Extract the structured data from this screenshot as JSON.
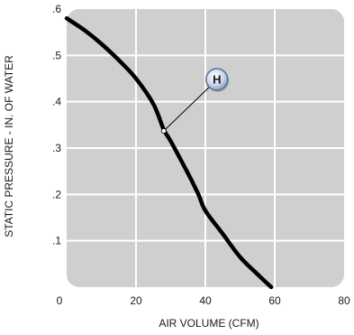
{
  "chart_data": {
    "type": "line",
    "xlabel": "AIR VOLUME (CFM)",
    "ylabel": "STATIC PRESSURE - IN. OF WATER",
    "xlim": [
      0,
      80
    ],
    "ylim": [
      0,
      0.6
    ],
    "x_ticks": [
      0,
      20,
      40,
      60,
      80
    ],
    "x_tick_labels": [
      "0",
      "20",
      "40",
      "60",
      "80"
    ],
    "y_ticks": [
      0.1,
      0.2,
      0.3,
      0.4,
      0.5,
      0.6
    ],
    "y_tick_labels": [
      ".1",
      ".2",
      ".3",
      ".4",
      ".5",
      ".6"
    ],
    "grid": true,
    "series": [
      {
        "x": [
          0,
          5,
          10,
          15,
          20,
          25,
          28,
          30,
          35,
          38,
          40,
          45,
          50,
          55,
          59
        ],
        "y": [
          0.58,
          0.555,
          0.525,
          0.49,
          0.45,
          0.395,
          0.34,
          0.315,
          0.245,
          0.2,
          0.165,
          0.115,
          0.065,
          0.028,
          0.0
        ],
        "color": "#000000"
      }
    ],
    "annotations": [
      {
        "label": "H",
        "x": 28,
        "y": 0.337
      }
    ]
  },
  "colors": {
    "plot_background": "#cfcfcf",
    "grid": "#ffffff",
    "curve": "#000000",
    "marker_fill": "#c9d6ea",
    "marker_stroke": "#5a6e91"
  }
}
